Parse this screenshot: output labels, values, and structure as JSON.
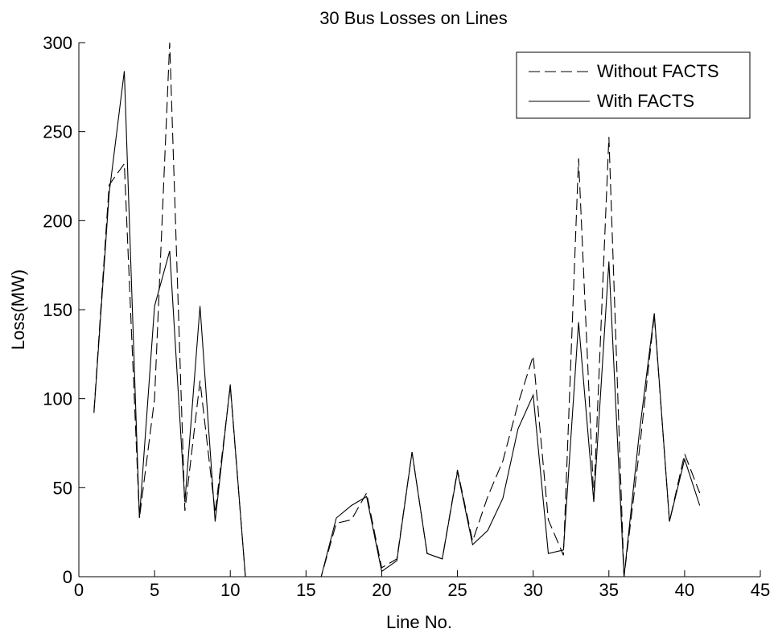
{
  "chart_data": {
    "type": "line",
    "title": "30 Bus Losses on Lines",
    "xlabel": "Line No.",
    "ylabel": "Loss(MW)",
    "xlim": [
      0,
      45
    ],
    "ylim": [
      0,
      300
    ],
    "xticks": [
      "0",
      "5",
      "10",
      "15",
      "20",
      "25",
      "30",
      "35",
      "40",
      "45"
    ],
    "yticks": [
      "0",
      "50",
      "100",
      "150",
      "200",
      "250",
      "300"
    ],
    "grid": false,
    "legend_position": "top-right",
    "x": [
      1,
      2,
      3,
      4,
      5,
      6,
      7,
      8,
      9,
      10,
      11,
      12,
      13,
      14,
      15,
      16,
      17,
      18,
      19,
      20,
      21,
      22,
      23,
      24,
      25,
      26,
      27,
      28,
      29,
      30,
      31,
      32,
      33,
      34,
      35,
      36,
      37,
      38,
      39,
      40,
      41
    ],
    "series": [
      {
        "name": "Without FACTS",
        "style": "dashed",
        "color": "#000000",
        "values": [
          93,
          220,
          232,
          33,
          100,
          300,
          37,
          110,
          36,
          107,
          0,
          0,
          0,
          0,
          0,
          0,
          30,
          32,
          47,
          5,
          10,
          70,
          13,
          10,
          60,
          20,
          45,
          65,
          97,
          124,
          32,
          12,
          235,
          43,
          247,
          0,
          70,
          147,
          31,
          69,
          47
        ]
      },
      {
        "name": "With FACTS",
        "style": "solid",
        "color": "#000000",
        "values": [
          92,
          215,
          284,
          33,
          152,
          183,
          42,
          152,
          31,
          108,
          0,
          0,
          0,
          0,
          0,
          0,
          33,
          40,
          45,
          3,
          9,
          70,
          13,
          10,
          59,
          18,
          26,
          44,
          83,
          102,
          13,
          15,
          143,
          42,
          177,
          0,
          80,
          148,
          31,
          66,
          40
        ]
      }
    ]
  }
}
